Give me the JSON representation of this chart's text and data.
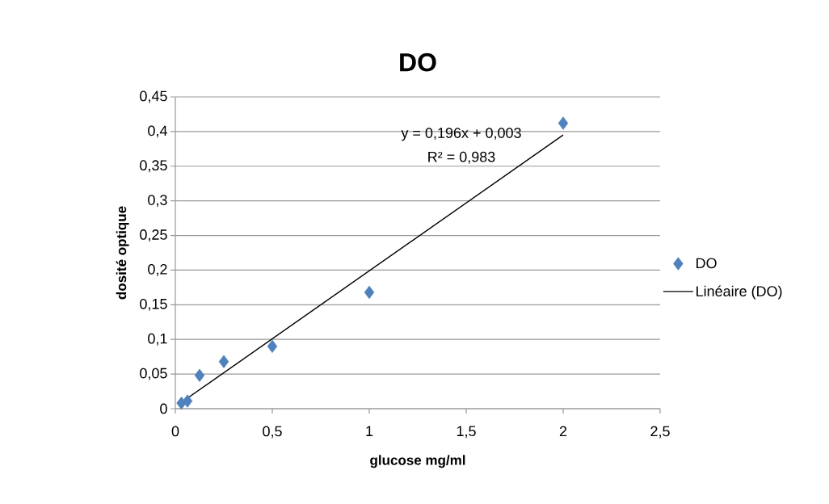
{
  "chart_data": {
    "type": "scatter",
    "title": "DO",
    "xlabel": "glucose mg/ml",
    "ylabel": "dosité optique",
    "series": [
      {
        "name": "DO",
        "marker": "diamond",
        "color": "#4f81bd",
        "x": [
          0.03125,
          0.0625,
          0.125,
          0.25,
          0.5,
          1,
          2
        ],
        "values": [
          0.008,
          0.011,
          0.048,
          0.068,
          0.09,
          0.168,
          0.412
        ]
      },
      {
        "name": "Linéaire (DO)",
        "type": "line",
        "color": "#000000",
        "x": [
          0.03125,
          2
        ],
        "values": [
          0.009,
          0.395
        ]
      }
    ],
    "xlim": [
      0,
      2.5
    ],
    "ylim": [
      0,
      0.45
    ],
    "xticks": [
      0,
      {
        "value": 0.5,
        "label": "0,5"
      },
      1,
      {
        "value": 1.5,
        "label": "1,5"
      },
      2,
      {
        "value": 2.5,
        "label": "2,5"
      }
    ],
    "yticks": [
      0,
      {
        "value": 0.05,
        "label": "0,05"
      },
      {
        "value": 0.1,
        "label": "0,1"
      },
      {
        "value": 0.15,
        "label": "0,15"
      },
      {
        "value": 0.2,
        "label": "0,2"
      },
      {
        "value": 0.25,
        "label": "0,25"
      },
      {
        "value": 0.3,
        "label": "0,3"
      },
      {
        "value": 0.35,
        "label": "0,35"
      },
      {
        "value": 0.4,
        "label": "0,4"
      },
      {
        "value": 0.45,
        "label": "0,45"
      }
    ],
    "annotations": [
      "y = 0,196x + 0,003",
      "R² = 0,983"
    ],
    "grid": "y",
    "legend": "right"
  }
}
